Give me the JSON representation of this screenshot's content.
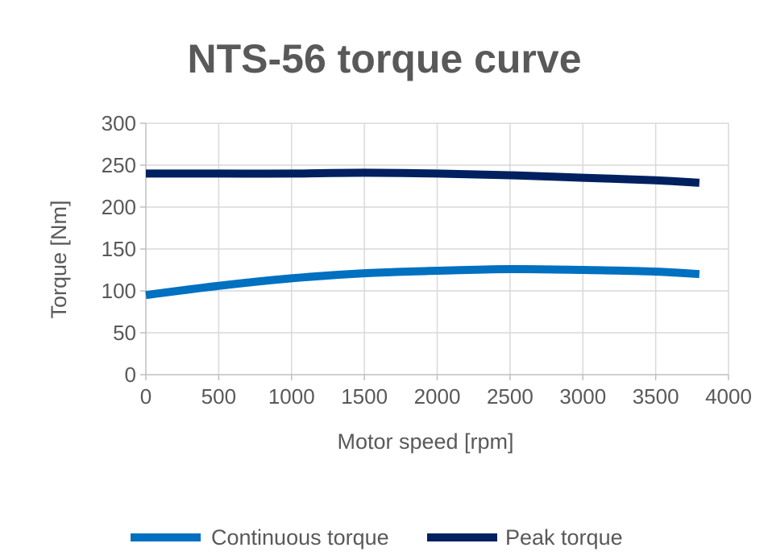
{
  "chart_data": {
    "type": "line",
    "title": "NTS-56 torque curve",
    "xlabel": "Motor speed [rpm]",
    "ylabel": "Torque [Nm]",
    "xlim": [
      0,
      4000
    ],
    "ylim": [
      0,
      300
    ],
    "xticks": [
      0,
      500,
      1000,
      1500,
      2000,
      2500,
      3000,
      3500,
      4000
    ],
    "yticks": [
      0,
      50,
      100,
      150,
      200,
      250,
      300
    ],
    "grid": true,
    "legend_position": "bottom",
    "x": [
      0,
      500,
      1000,
      1500,
      2000,
      2500,
      3000,
      3500,
      3800
    ],
    "series": [
      {
        "name": "Continuous torque",
        "color": "#0070C0",
        "values": [
          95,
          106,
          115,
          121,
          124,
          126,
          125,
          123,
          120
        ]
      },
      {
        "name": "Peak torque",
        "color": "#002060",
        "values": [
          240,
          240,
          240,
          241,
          240,
          238,
          235,
          232,
          229
        ]
      }
    ]
  }
}
